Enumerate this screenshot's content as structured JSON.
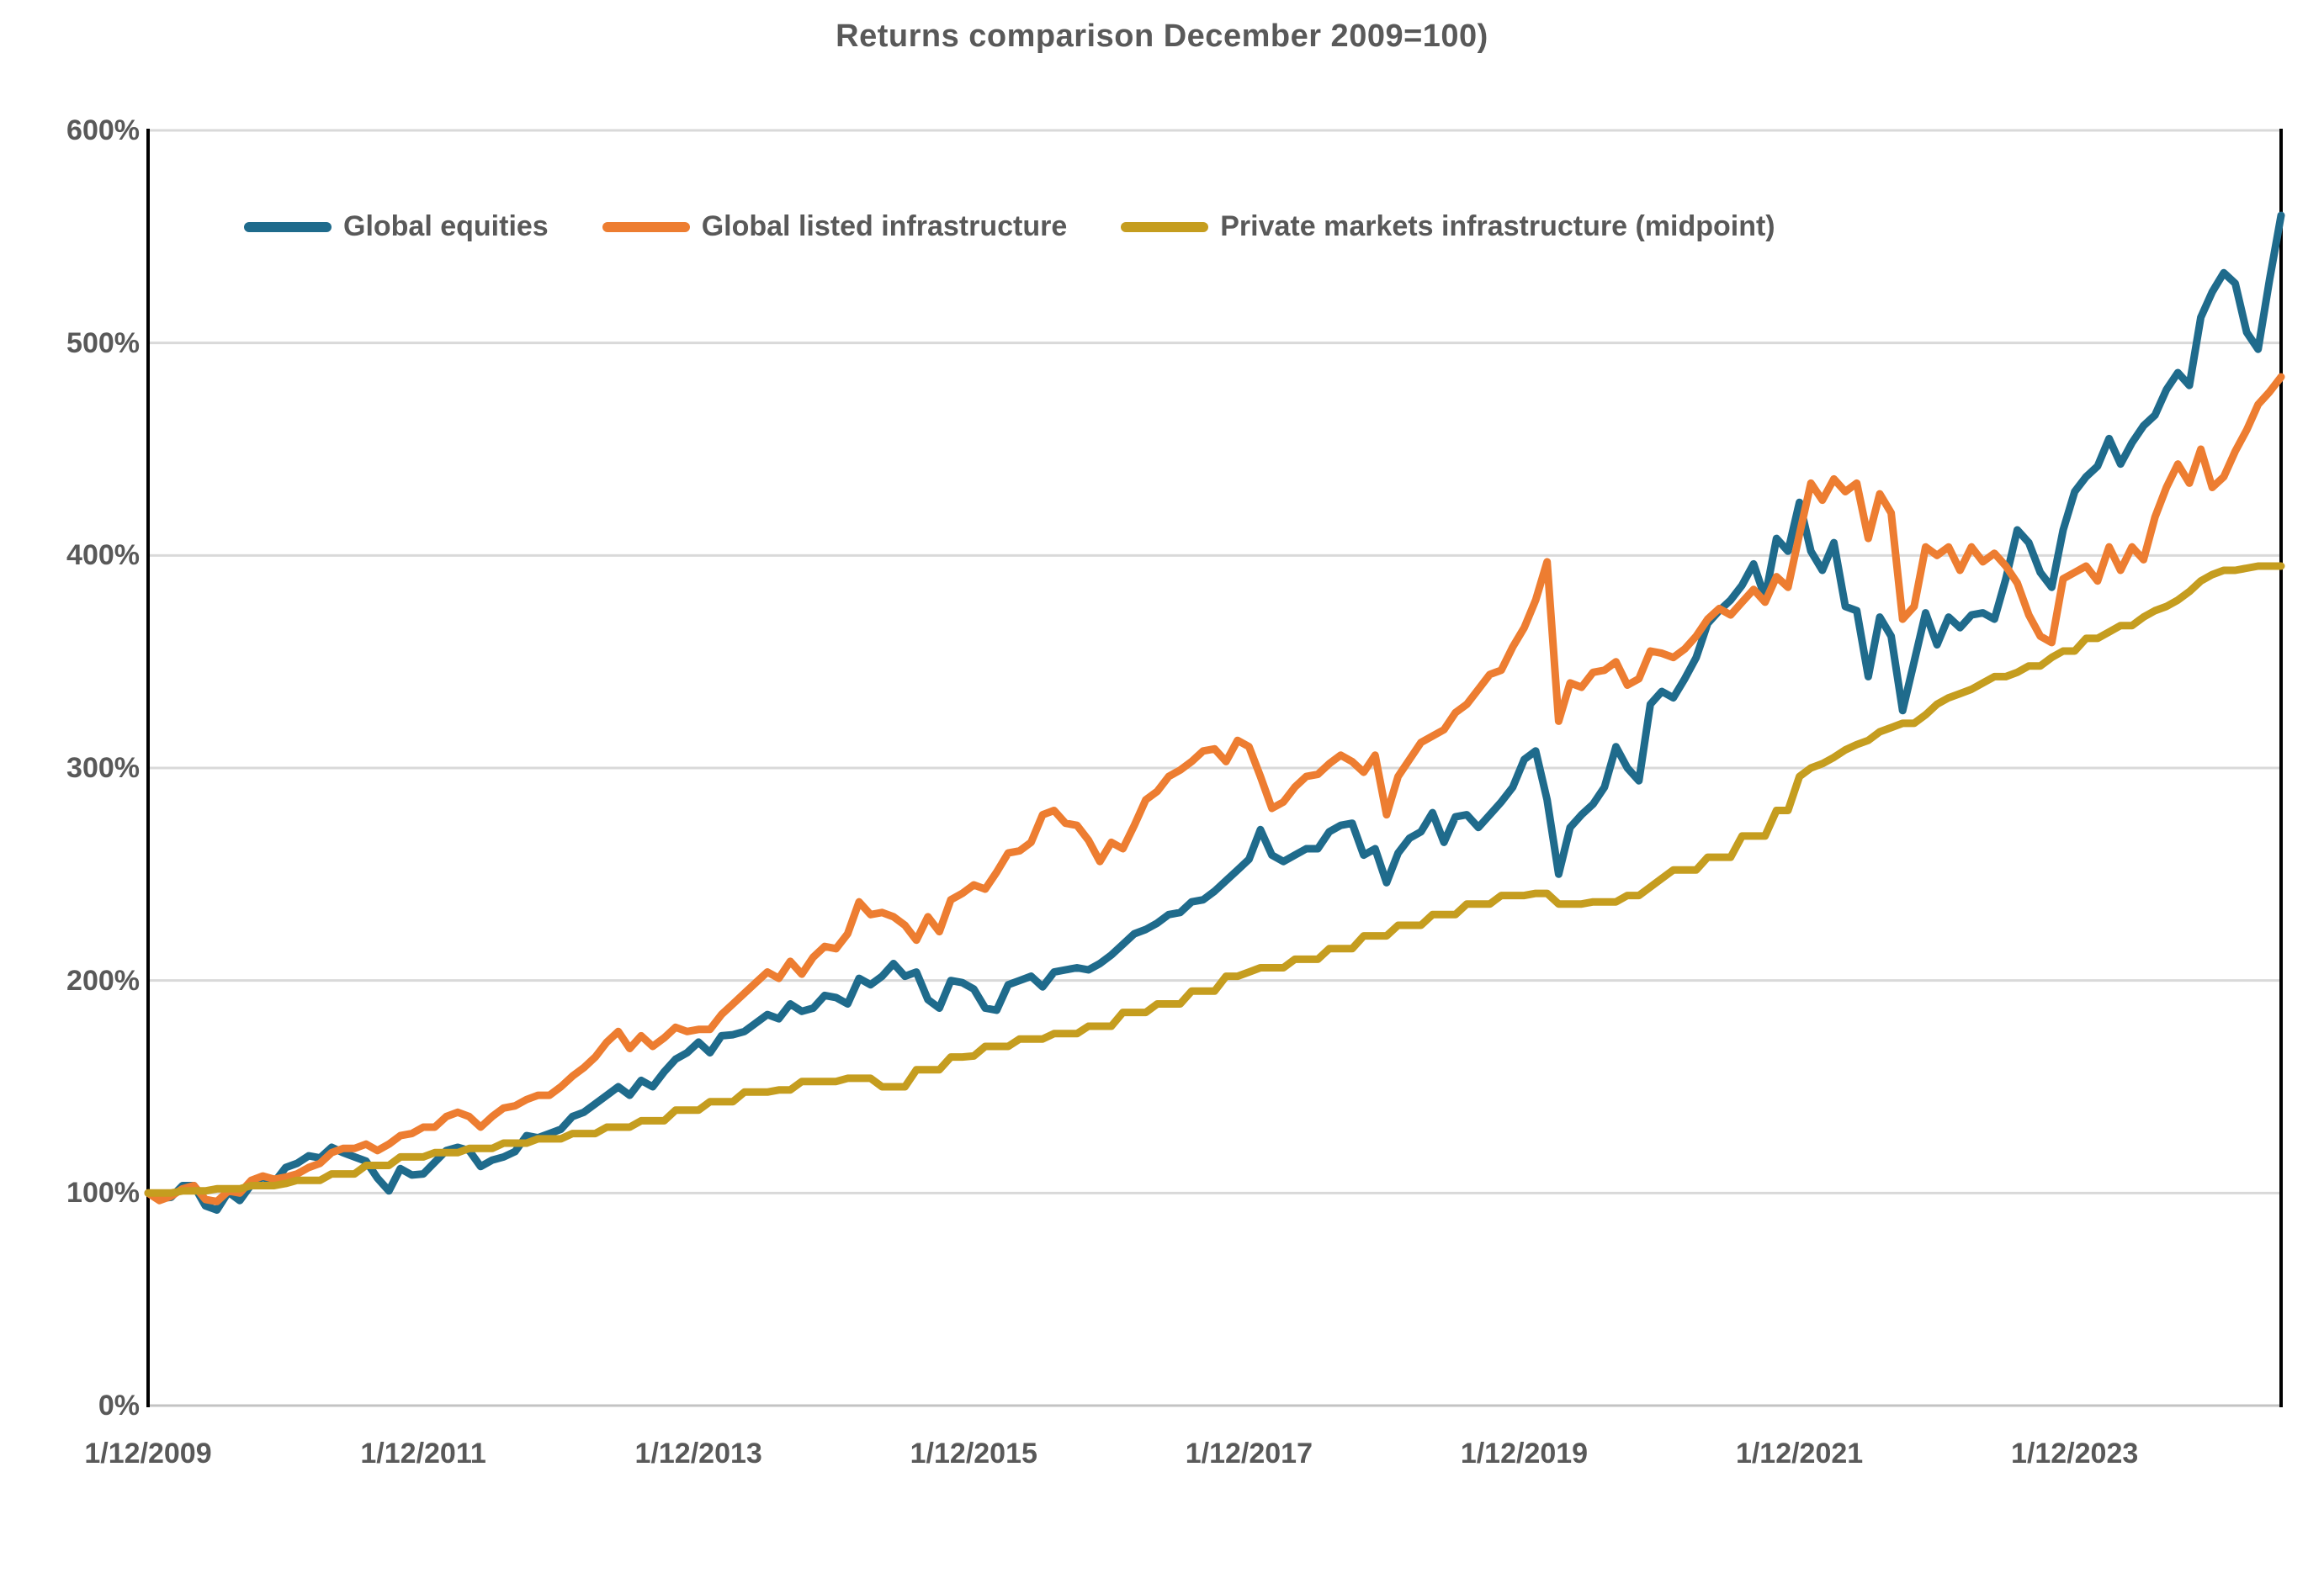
{
  "chart": {
    "title": "Returns comparison December 2009=100)"
  },
  "chart_data": {
    "type": "line",
    "title": "Returns comparison December 2009=100)",
    "xlabel": "",
    "ylabel": "",
    "x_frequency": "monthly",
    "x_tick_labels": [
      "1/12/2009",
      "1/12/2011",
      "1/12/2013",
      "1/12/2015",
      "1/12/2017",
      "1/12/2019",
      "1/12/2021",
      "1/12/2023"
    ],
    "x_tick_month_indices": [
      0,
      24,
      48,
      72,
      96,
      120,
      144,
      168
    ],
    "y_tick_labels": [
      "0%",
      "100%",
      "200%",
      "300%",
      "400%",
      "500%",
      "600%"
    ],
    "y_tick_values": [
      0,
      100,
      200,
      300,
      400,
      500,
      600
    ],
    "ylim": [
      0,
      600
    ],
    "grid": "horizontal",
    "legend_position": "top-inside",
    "colors": {
      "grid": "#d9d9d9",
      "baseline": "#c3c3c3",
      "spine": "#000000",
      "text": "#595959"
    },
    "series": [
      {
        "name": "Global equities",
        "color": "#1f6b8c",
        "values": [
          100,
          97.5,
          98,
          103.5,
          103.5,
          94,
          92,
          100.5,
          96.5,
          104,
          107.5,
          105,
          112,
          114,
          117.5,
          116.5,
          121.5,
          119,
          117,
          115,
          107,
          101,
          111.5,
          108.5,
          109,
          114.5,
          120,
          121.5,
          120,
          112.5,
          115.5,
          117,
          119.5,
          127,
          126,
          128,
          130,
          136,
          138,
          142,
          146,
          150,
          146,
          153,
          150,
          157,
          163,
          166,
          171,
          166,
          174,
          174.5,
          176,
          180,
          184,
          182,
          189,
          185.5,
          187,
          193,
          192,
          189,
          201,
          198,
          202,
          208,
          202,
          204,
          191,
          187,
          200,
          199,
          196,
          187,
          186,
          198,
          200,
          202,
          197,
          204,
          205,
          206,
          205,
          208,
          212,
          217,
          222,
          224,
          227,
          231,
          232,
          237,
          238,
          242,
          247,
          252,
          257,
          271,
          259,
          256,
          259,
          262,
          262,
          270,
          273,
          274,
          259,
          262,
          246,
          260,
          267,
          270,
          279,
          265,
          277,
          278,
          272,
          278,
          284,
          291,
          304,
          308,
          285,
          250,
          272,
          278,
          283,
          291,
          310,
          300,
          294,
          330,
          336,
          333,
          342,
          352,
          368,
          374,
          379,
          386,
          396,
          380,
          408,
          402,
          425,
          402,
          393,
          406,
          376,
          374,
          343,
          371,
          362,
          327,
          350,
          373,
          358,
          371,
          366,
          372,
          373,
          370,
          389,
          412,
          406,
          392,
          385,
          412,
          430,
          437,
          442,
          455,
          443,
          453,
          461,
          466,
          478,
          486,
          480,
          512,
          524,
          533,
          528,
          505,
          497,
          530,
          560
        ]
      },
      {
        "name": "Global listed infrastructure",
        "color": "#ed7d31",
        "values": [
          100,
          96.5,
          98.5,
          102,
          103.5,
          97,
          96,
          101,
          100,
          106,
          108,
          106.5,
          107.5,
          109,
          112,
          114,
          119,
          121,
          121,
          123,
          120,
          123,
          127,
          128,
          131,
          131,
          136,
          138,
          136,
          131,
          136,
          140,
          141,
          144,
          146,
          146,
          150,
          155,
          159,
          164,
          171,
          176,
          168,
          174,
          169,
          173,
          178,
          176,
          177,
          177,
          184,
          189,
          194,
          199,
          204,
          201,
          209,
          203,
          211,
          216,
          215,
          222,
          237,
          231,
          232,
          230,
          226,
          219,
          230,
          223,
          238,
          241,
          245,
          243,
          251,
          260,
          261,
          265,
          278,
          280,
          274,
          273,
          266,
          256,
          265,
          262,
          273,
          285,
          289,
          296,
          299,
          303,
          308,
          309,
          303,
          313,
          310,
          296,
          281,
          284,
          291,
          296,
          297,
          302,
          306,
          303,
          298,
          306,
          278,
          296,
          304,
          312,
          315,
          318,
          326,
          330,
          337,
          344,
          346,
          357,
          366,
          379,
          397,
          322,
          340,
          338,
          345,
          346,
          350,
          339,
          342,
          355,
          354,
          352,
          356,
          362,
          370,
          375,
          372,
          378,
          384,
          378,
          390,
          385,
          410,
          434,
          426,
          436,
          430,
          434,
          408,
          429,
          420,
          370,
          376,
          404,
          400,
          404,
          393,
          404,
          397,
          401,
          395,
          387,
          372,
          362,
          359,
          389,
          392,
          395,
          388,
          404,
          393,
          404,
          398,
          418,
          432,
          443,
          434,
          450,
          432,
          437,
          449,
          459,
          471,
          477,
          484
        ]
      },
      {
        "name": "Private markets infrastructure (midpoint)",
        "color": "#c59d1f",
        "values": [
          100,
          100,
          100,
          101,
          101,
          101,
          102,
          102,
          102,
          103.5,
          103.5,
          103.5,
          104.5,
          106,
          106,
          106,
          109,
          109,
          109,
          113,
          113,
          113,
          117,
          117,
          117,
          119,
          119,
          119,
          121,
          121,
          121,
          123.5,
          123.5,
          123.5,
          125.5,
          125.5,
          125.5,
          128,
          128,
          128,
          131,
          131,
          131,
          134,
          134,
          134,
          139,
          139,
          139,
          143,
          143,
          143,
          147.5,
          147.5,
          147.5,
          148.5,
          148.5,
          152.5,
          152.5,
          152.5,
          152.5,
          154,
          154,
          154,
          150,
          150,
          150,
          158,
          158,
          158,
          164,
          164,
          164.5,
          169,
          169,
          169,
          172.5,
          172.5,
          172.5,
          175,
          175,
          175,
          178.5,
          178.5,
          178.5,
          185,
          185,
          185,
          189,
          189,
          189,
          195,
          195,
          195,
          202,
          202,
          204,
          206,
          206,
          206,
          210,
          210,
          210,
          215,
          215,
          215,
          221,
          221,
          221,
          226,
          226,
          226,
          231,
          231,
          231,
          236,
          236,
          236,
          240,
          240,
          240,
          241,
          241,
          236,
          236,
          236,
          237,
          237,
          237,
          240,
          240,
          244,
          248,
          252,
          252,
          252,
          258,
          258,
          258,
          268,
          268,
          268,
          280,
          280,
          296,
          300,
          302,
          305,
          308.5,
          311,
          313,
          317,
          319,
          321,
          321,
          325,
          330,
          333,
          335,
          337,
          340,
          343,
          343,
          345,
          348,
          348,
          352,
          355,
          355,
          361,
          361,
          364,
          367,
          367,
          371,
          374,
          376,
          379,
          383,
          388,
          391,
          393,
          393,
          394,
          395,
          395,
          395
        ]
      }
    ]
  }
}
